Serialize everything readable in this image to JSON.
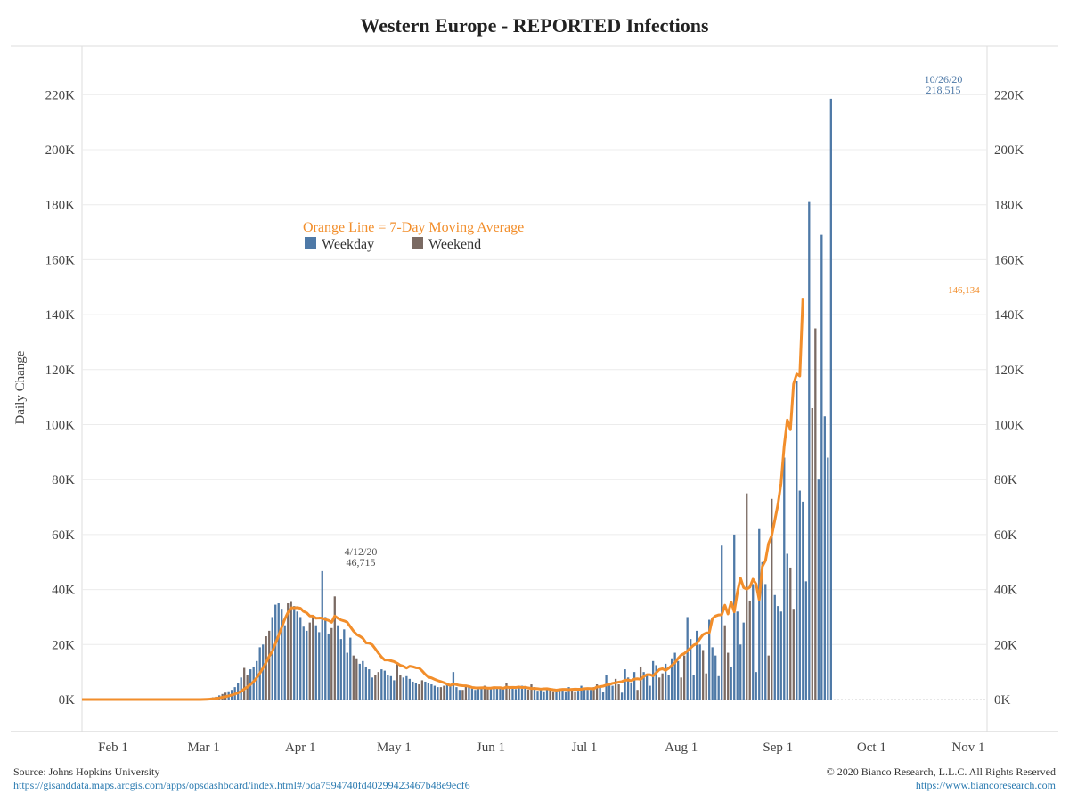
{
  "title": "Western Europe - REPORTED Infections",
  "colors": {
    "weekday": "#4e79a7",
    "weekend": "#7a6a63",
    "average": "#f28e2b",
    "grid": "#ececec",
    "axis_text": "#444444"
  },
  "legend": {
    "ma_label": "Orange Line = 7-Day Moving Average",
    "weekday_label": "Weekday",
    "weekend_label": "Weekend"
  },
  "annotations": {
    "apr_peak_date": "4/12/20",
    "apr_peak_value": "46,715",
    "oct_peak_date": "10/26/20",
    "oct_peak_value": "218,515",
    "ma_last_value": "146,134"
  },
  "footer": {
    "source": "Source: Johns Hopkins University",
    "source_url": "https://gisanddata.maps.arcgis.com/apps/opsdashboard/index.html#/bda7594740fd40299423467b48e9ecf6",
    "copyright": "© 2020 Bianco Research, L.L.C. All Rights Reserved",
    "site_url": "https://www.biancoresearch.com"
  },
  "chart_data": {
    "type": "bar",
    "ylabel": "Daily Change",
    "ylim": [
      0,
      235000
    ],
    "y_ticks": [
      0,
      20000,
      40000,
      60000,
      80000,
      100000,
      120000,
      140000,
      160000,
      180000,
      200000,
      220000
    ],
    "y_tick_labels": [
      "0K",
      "20K",
      "40K",
      "60K",
      "80K",
      "100K",
      "120K",
      "140K",
      "160K",
      "180K",
      "200K",
      "220K"
    ],
    "x_tick_labels": [
      "Feb 1",
      "Mar 1",
      "Apr 1",
      "May 1",
      "Jun 1",
      "Jul 1",
      "Aug 1",
      "Sep 1",
      "Oct 1",
      "Nov 1"
    ],
    "x_tick_dates": [
      "2020-02-01",
      "2020-03-01",
      "2020-04-01",
      "2020-05-01",
      "2020-06-01",
      "2020-07-01",
      "2020-08-01",
      "2020-09-01",
      "2020-10-01",
      "2020-11-01"
    ],
    "x_range": [
      "2020-01-22",
      "2020-11-07"
    ],
    "start_date": "2020-01-22",
    "series": [
      {
        "name": "Daily Change",
        "values": [
          0,
          0,
          0,
          0,
          0,
          0,
          0,
          0,
          0,
          0,
          0,
          0,
          0,
          0,
          0,
          0,
          0,
          0,
          0,
          0,
          0,
          0,
          0,
          0,
          0,
          0,
          0,
          0,
          0,
          0,
          0,
          0,
          0,
          0,
          0,
          0,
          0,
          0,
          100,
          200,
          300,
          500,
          800,
          1000,
          1500,
          2000,
          2500,
          3000,
          3500,
          4500,
          6000,
          8000,
          11500,
          9000,
          11000,
          12000,
          14000,
          19000,
          20000,
          23000,
          25000,
          30000,
          34500,
          35000,
          33000,
          27000,
          35000,
          35500,
          34000,
          32000,
          30000,
          26500,
          25000,
          28000,
          30000,
          27000,
          24500,
          46715,
          30000,
          24000,
          26000,
          37500,
          27000,
          22000,
          25500,
          17000,
          22500,
          16000,
          15000,
          13000,
          14000,
          12000,
          11000,
          8000,
          9000,
          10000,
          11000,
          10500,
          9000,
          8500,
          7000,
          13000,
          9000,
          8000,
          8500,
          7500,
          6500,
          6000,
          5500,
          7000,
          6500,
          6000,
          5500,
          5000,
          4500,
          4500,
          5000,
          5500,
          4800,
          10000,
          4500,
          3500,
          3500,
          5000,
          4500,
          4000,
          3500,
          3800,
          4000,
          5000,
          4000,
          3800,
          4200,
          4500,
          4000,
          3700,
          6000,
          4000,
          4200,
          3800,
          4500,
          5000,
          4800,
          3600,
          5500,
          4500,
          3200,
          4000,
          3000,
          4000,
          3500,
          3000,
          3200,
          3800,
          3400,
          3000,
          4500,
          4000,
          3000,
          3200,
          5000,
          4000,
          3500,
          3500,
          4500,
          5500,
          5000,
          2800,
          9000,
          6000,
          5000,
          7500,
          5500,
          2500,
          11000,
          8000,
          6000,
          10000,
          3500,
          12000,
          10000,
          9000,
          5000,
          14000,
          12500,
          8000,
          9500,
          13000,
          9000,
          15000,
          17000,
          14000,
          8000,
          16000,
          30000,
          22000,
          9000,
          25000,
          20000,
          18000,
          9500,
          29000,
          19000,
          16000,
          8500,
          56000,
          27000,
          17000,
          12000,
          60000,
          32000,
          20000,
          28000,
          75000,
          36000,
          42000,
          10000,
          62000,
          50000,
          42000,
          16000,
          73000,
          38000,
          34000,
          32000,
          88000,
          53000,
          48000,
          33000,
          116000,
          76000,
          72000,
          43000,
          181000,
          106000,
          135000,
          80000,
          169000,
          103000,
          88000,
          218515
        ]
      },
      {
        "name": "7-Day Moving Average",
        "values": [
          0,
          0,
          0,
          0,
          0,
          0,
          0,
          0,
          0,
          0,
          0,
          0,
          0,
          0,
          0,
          0,
          0,
          0,
          0,
          0,
          0,
          0,
          0,
          0,
          0,
          0,
          0,
          0,
          0,
          0,
          0,
          0,
          0,
          0,
          0,
          0,
          0,
          0,
          15,
          45,
          90,
          160,
          270,
          410,
          590,
          800,
          1040,
          1310,
          1620,
          1980,
          2430,
          3000,
          3800,
          4590,
          5460,
          6520,
          7940,
          9560,
          11450,
          13450,
          15750,
          17530,
          20340,
          23280,
          26220,
          29260,
          31640,
          33340,
          33350,
          33430,
          33190,
          32040,
          31540,
          30400,
          30330,
          29570,
          29640,
          29630,
          29100,
          28780,
          28100,
          30370,
          29570,
          28930,
          28590,
          28100,
          26470,
          24880,
          23700,
          23040,
          22280,
          20640,
          20520,
          19920,
          18430,
          16870,
          15470,
          14370,
          14430,
          14100,
          13780,
          13200,
          12450,
          12100,
          11420,
          12120,
          11920,
          11560,
          11480,
          10430,
          9170,
          8140,
          7860,
          7340,
          6890,
          6500,
          6100,
          5580,
          5130,
          5610,
          5410,
          5130,
          5010,
          5000,
          4760,
          4400,
          4250,
          4200,
          4270,
          4290,
          4140,
          4140,
          4330,
          4290,
          4290,
          4090,
          4510,
          4380,
          4420,
          4370,
          4530,
          4380,
          4470,
          4200,
          4010,
          4010,
          3930,
          3790,
          3910,
          3930,
          3740,
          3560,
          3420,
          3560,
          3680,
          3700,
          3610,
          3700,
          3770,
          3710,
          3730,
          3930,
          4000,
          3970,
          3880,
          4580,
          4670,
          4850,
          5290,
          5460,
          5900,
          6100,
          6330,
          6510,
          7000,
          7110,
          6840,
          7410,
          7540,
          7350,
          8340,
          9040,
          9040,
          8580,
          9760,
          10900,
          11220,
          10620,
          11400,
          12400,
          13430,
          14940,
          16160,
          16730,
          17700,
          18770,
          19770,
          20340,
          22150,
          23630,
          24190,
          24290,
          29440,
          30360,
          30770,
          30840,
          34290,
          31140,
          35460,
          31900,
          38990,
          44150,
          40730,
          40160,
          40850,
          43770,
          42030,
          36230,
          48380,
          50500,
          56830,
          59570,
          65240,
          71010,
          78710,
          92270,
          101720,
          98160,
          114770,
          118390,
          117690,
          146134
        ]
      }
    ]
  }
}
